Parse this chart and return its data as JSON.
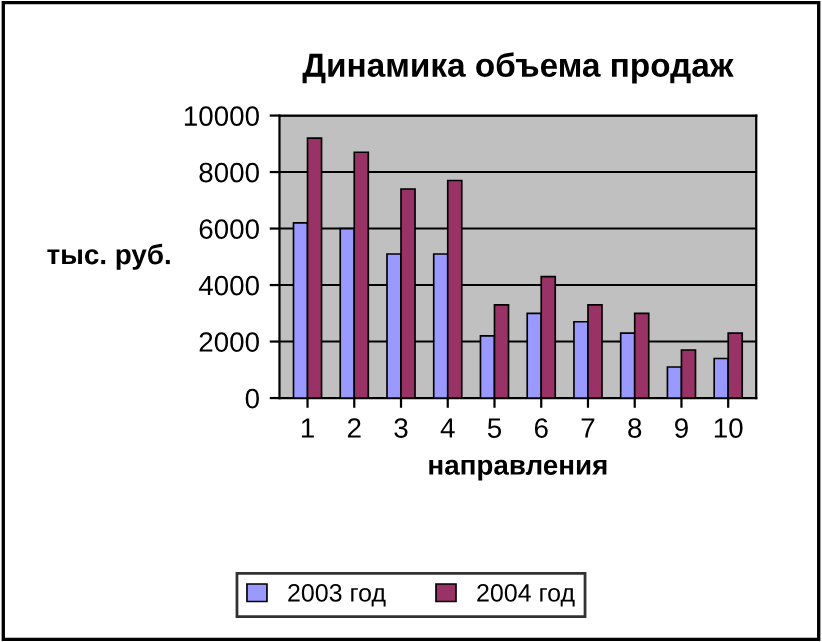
{
  "chart_data": {
    "type": "bar",
    "title": "Динамика объема продаж",
    "xlabel": "направления",
    "ylabel": "тыс. руб.",
    "categories": [
      "1",
      "2",
      "3",
      "4",
      "5",
      "6",
      "7",
      "8",
      "9",
      "10"
    ],
    "series": [
      {
        "name": "2003 год",
        "color": "#9999ff",
        "values": [
          6200,
          6000,
          5100,
          5100,
          2200,
          3000,
          2700,
          2300,
          1100,
          1400
        ]
      },
      {
        "name": "2004 год",
        "color": "#993366",
        "values": [
          9200,
          8700,
          7400,
          7700,
          3300,
          4300,
          3300,
          3000,
          1700,
          2300
        ]
      }
    ],
    "ylim": [
      0,
      10000
    ],
    "yticks": [
      0,
      2000,
      4000,
      6000,
      8000,
      10000
    ],
    "grid": "y",
    "legend": "bottom"
  }
}
